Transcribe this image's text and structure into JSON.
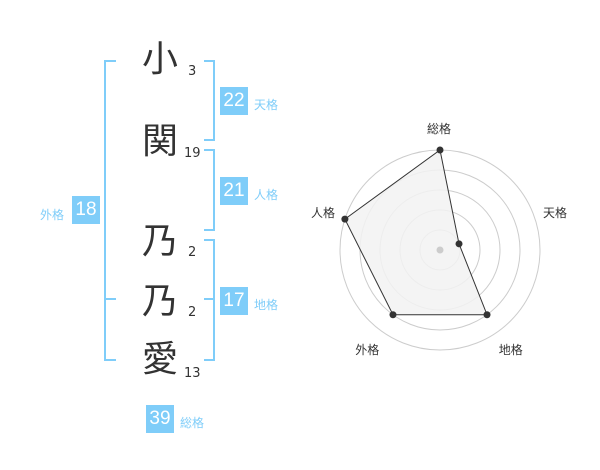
{
  "name_chars": [
    {
      "char": "小",
      "strokes": "3"
    },
    {
      "char": "関",
      "strokes": "19"
    },
    {
      "char": "乃",
      "strokes": "2"
    },
    {
      "char": "乃",
      "strokes": "2"
    },
    {
      "char": "愛",
      "strokes": "13"
    }
  ],
  "kaku": {
    "tenkaku": {
      "label": "天格",
      "value": "22"
    },
    "jinkaku": {
      "label": "人格",
      "value": "21"
    },
    "chikaku": {
      "label": "地格",
      "value": "17"
    },
    "gaikaku": {
      "label": "外格",
      "value": "18"
    },
    "soukaku": {
      "label": "総格",
      "value": "39"
    }
  },
  "colors": {
    "accent": "#7fcdf9",
    "polygon_fill": "#f2f2f2",
    "ring": "#cccccc"
  },
  "chart_data": {
    "type": "radar",
    "axes": [
      "総格",
      "天格",
      "地格",
      "外格",
      "人格"
    ],
    "values": [
      5,
      1,
      4,
      4,
      5
    ],
    "range": [
      0,
      5
    ],
    "rings": 5
  }
}
